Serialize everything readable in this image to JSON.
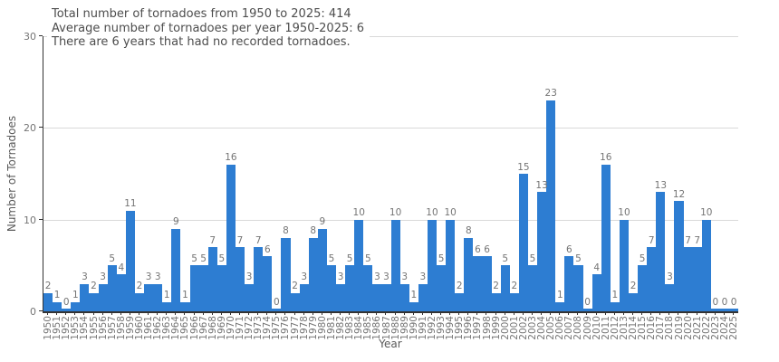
{
  "figure": {
    "annotation": {
      "line1": "Total number of tornadoes from 1950 to 2025: 414",
      "line2": "Average number of tornadoes per year 1950-2025: 6",
      "line3": "There are 6 years that had no recorded tornadoes."
    }
  },
  "chart_data": {
    "type": "bar",
    "title": "",
    "xlabel": "Year",
    "ylabel": "Number of Tornadoes",
    "categories": [
      "1950",
      "1951",
      "1952",
      "1953",
      "1954",
      "1955",
      "1956",
      "1957",
      "1958",
      "1959",
      "1960",
      "1961",
      "1962",
      "1963",
      "1964",
      "1965",
      "1966",
      "1967",
      "1968",
      "1969",
      "1970",
      "1971",
      "1972",
      "1973",
      "1974",
      "1975",
      "1976",
      "1977",
      "1978",
      "1979",
      "1980",
      "1981",
      "1982",
      "1983",
      "1984",
      "1985",
      "1986",
      "1987",
      "1988",
      "1989",
      "1990",
      "1991",
      "1992",
      "1993",
      "1994",
      "1995",
      "1996",
      "1997",
      "1998",
      "1999",
      "2000",
      "2001",
      "2002",
      "2003",
      "2004",
      "2005",
      "2006",
      "2007",
      "2008",
      "2009",
      "2010",
      "2011",
      "2012",
      "2013",
      "2014",
      "2015",
      "2016",
      "2017",
      "2018",
      "2019",
      "2020",
      "2021",
      "2022",
      "2023",
      "2024",
      "2025"
    ],
    "values": [
      2,
      1,
      0,
      1,
      3,
      2,
      3,
      5,
      4,
      11,
      2,
      3,
      3,
      1,
      9,
      1,
      5,
      5,
      7,
      5,
      16,
      7,
      3,
      7,
      6,
      0,
      8,
      2,
      3,
      8,
      9,
      5,
      3,
      5,
      10,
      5,
      3,
      3,
      10,
      3,
      1,
      3,
      10,
      5,
      10,
      2,
      8,
      6,
      6,
      2,
      5,
      2,
      15,
      5,
      13,
      23,
      1,
      6,
      5,
      0,
      4,
      16,
      1,
      10,
      2,
      5,
      7,
      13,
      3,
      12,
      7,
      7,
      10,
      0,
      0,
      0
    ],
    "data_labels_shown": true,
    "ylim": [
      0,
      30
    ],
    "yticks": [
      0,
      10,
      20,
      30
    ],
    "grid": true,
    "legend": "none",
    "bar_color": "#2d7dd2",
    "value_label_color": "#757575",
    "tick_label_color": "#757575",
    "axis_title_color": "#595959",
    "axis_line_color": "#333333",
    "grid_color": "#d9d9d9",
    "annotation_text_color": "#4d4d4d"
  }
}
